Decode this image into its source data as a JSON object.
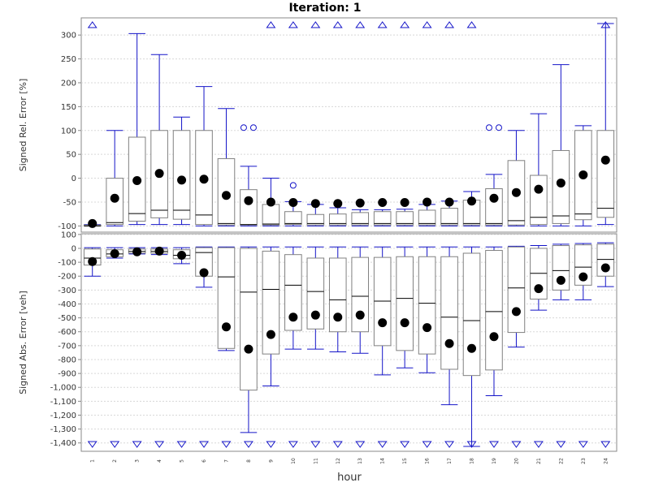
{
  "title": "Iteration: 1",
  "xlabel": "hour",
  "colors": {
    "whisker": "#1414c8",
    "box": "#808080",
    "median": "#000000",
    "mean": "#000000",
    "grid": "#d8d8d8"
  },
  "chart_data": [
    {
      "type": "boxplot",
      "ylabel": "Signed Rel. Error [%]",
      "ylim": [
        -113,
        336
      ],
      "yticks": [
        -100,
        -50,
        0,
        50,
        100,
        150,
        200,
        250,
        300
      ],
      "ytick_labels": [
        "-100",
        "-50",
        "0",
        "50",
        "100",
        "150",
        "200",
        "250",
        "300"
      ],
      "grid": true,
      "categories": [
        "1",
        "2",
        "3",
        "4",
        "5",
        "6",
        "7",
        "8",
        "9",
        "10",
        "11",
        "12",
        "13",
        "14",
        "15",
        "16",
        "17",
        "18",
        "19",
        "20",
        "21",
        "22",
        "23",
        "24"
      ],
      "boxes": [
        {
          "whislo": -100,
          "q1": -100,
          "med": -100,
          "q3": -98,
          "whishi": -97,
          "mean": -95
        },
        {
          "whislo": -100,
          "q1": -97,
          "med": -93,
          "q3": 0,
          "whishi": 100,
          "mean": -42
        },
        {
          "whislo": -97,
          "q1": -90,
          "med": -74,
          "q3": 86,
          "whishi": 303,
          "mean": -5
        },
        {
          "whislo": -97,
          "q1": -83,
          "med": -67,
          "q3": 100,
          "whishi": 259,
          "mean": 10
        },
        {
          "whislo": -97,
          "q1": -86,
          "med": -67,
          "q3": 100,
          "whishi": 128,
          "mean": -4
        },
        {
          "whislo": -100,
          "q1": -97,
          "med": -77,
          "q3": 100,
          "whishi": 192,
          "mean": -2
        },
        {
          "whislo": -100,
          "q1": -98,
          "med": -95,
          "q3": 41,
          "whishi": 146,
          "mean": -36
        },
        {
          "whislo": -100,
          "q1": -98,
          "med": -97,
          "q3": -24,
          "whishi": 25,
          "mean": -47
        },
        {
          "whislo": -100,
          "q1": -98,
          "med": -96,
          "q3": -55,
          "whishi": 0,
          "mean": -50
        },
        {
          "whislo": -100,
          "q1": -97,
          "med": -95,
          "q3": -70,
          "whishi": -49,
          "mean": -51
        },
        {
          "whislo": -100,
          "q1": -98,
          "med": -95,
          "q3": -76,
          "whishi": -55,
          "mean": -53
        },
        {
          "whislo": -100,
          "q1": -98,
          "med": -95,
          "q3": -75,
          "whishi": -62,
          "mean": -53
        },
        {
          "whislo": -100,
          "q1": -98,
          "med": -95,
          "q3": -72,
          "whishi": -66,
          "mean": -52
        },
        {
          "whislo": -100,
          "q1": -98,
          "med": -95,
          "q3": -70,
          "whishi": -66,
          "mean": -51
        },
        {
          "whislo": -100,
          "q1": -98,
          "med": -95,
          "q3": -70,
          "whishi": -65,
          "mean": -51
        },
        {
          "whislo": -100,
          "q1": -98,
          "med": -95,
          "q3": -67,
          "whishi": -55,
          "mean": -50
        },
        {
          "whislo": -100,
          "q1": -98,
          "med": -95,
          "q3": -63,
          "whishi": -48,
          "mean": -50
        },
        {
          "whislo": -100,
          "q1": -98,
          "med": -95,
          "q3": -46,
          "whishi": -28,
          "mean": -48
        },
        {
          "whislo": -100,
          "q1": -98,
          "med": -95,
          "q3": -22,
          "whishi": 8,
          "mean": -42
        },
        {
          "whislo": -100,
          "q1": -98,
          "med": -89,
          "q3": 37,
          "whishi": 100,
          "mean": -30
        },
        {
          "whislo": -100,
          "q1": -97,
          "med": -82,
          "q3": 6,
          "whishi": 135,
          "mean": -23
        },
        {
          "whislo": -100,
          "q1": -95,
          "med": -79,
          "q3": 58,
          "whishi": 238,
          "mean": -10
        },
        {
          "whislo": -100,
          "q1": -87,
          "med": -75,
          "q3": 100,
          "whishi": 110,
          "mean": 7
        },
        {
          "whislo": -97,
          "q1": -82,
          "med": -63,
          "q3": 100,
          "whishi": 324,
          "mean": 38
        }
      ],
      "outliers": [
        {
          "category": "8",
          "value": 106
        },
        {
          "category": "8",
          "value": 106
        },
        {
          "category": "10",
          "value": -15
        },
        {
          "category": "19",
          "value": 106
        },
        {
          "category": "19",
          "value": 106
        }
      ],
      "far_out_markers": [
        {
          "category": "1",
          "direction": "up"
        },
        {
          "category": "9",
          "direction": "up"
        },
        {
          "category": "10",
          "direction": "up"
        },
        {
          "category": "11",
          "direction": "up"
        },
        {
          "category": "12",
          "direction": "up"
        },
        {
          "category": "13",
          "direction": "up"
        },
        {
          "category": "14",
          "direction": "up"
        },
        {
          "category": "15",
          "direction": "up"
        },
        {
          "category": "16",
          "direction": "up"
        },
        {
          "category": "17",
          "direction": "up"
        },
        {
          "category": "18",
          "direction": "up"
        },
        {
          "category": "24",
          "direction": "up"
        }
      ]
    },
    {
      "type": "boxplot",
      "ylabel": "Signed Abs. Error [veh]",
      "ylim": [
        -1460,
        105
      ],
      "yticks": [
        -1400,
        -1300,
        -1200,
        -1100,
        -1000,
        -900,
        -800,
        -700,
        -600,
        -500,
        -400,
        -300,
        -200,
        -100,
        0,
        100
      ],
      "ytick_labels": [
        "-1,400",
        "-1,300",
        "-1,200",
        "-1,100",
        "-1,000",
        "-900",
        "-800",
        "-700",
        "-600",
        "-500",
        "-400",
        "-300",
        "-200",
        "-100",
        "0",
        "100"
      ],
      "grid": true,
      "categories": [
        "1",
        "2",
        "3",
        "4",
        "5",
        "6",
        "7",
        "8",
        "9",
        "10",
        "11",
        "12",
        "13",
        "14",
        "15",
        "16",
        "17",
        "18",
        "19",
        "20",
        "21",
        "22",
        "23",
        "24"
      ],
      "boxes": [
        {
          "whislo": -200,
          "q1": -120,
          "med": -70,
          "q3": -5,
          "whishi": 5,
          "mean": -95
        },
        {
          "whislo": -70,
          "q1": -60,
          "med": -40,
          "q3": -10,
          "whishi": 5,
          "mean": -38
        },
        {
          "whislo": -40,
          "q1": -35,
          "med": -22,
          "q3": -5,
          "whishi": 5,
          "mean": -25
        },
        {
          "whislo": -45,
          "q1": -35,
          "med": -22,
          "q3": -5,
          "whishi": 5,
          "mean": -20
        },
        {
          "whislo": -110,
          "q1": -75,
          "med": -50,
          "q3": -10,
          "whishi": 5,
          "mean": -50
        },
        {
          "whislo": -280,
          "q1": -200,
          "med": -30,
          "q3": 5,
          "whishi": 10,
          "mean": -175
        },
        {
          "whislo": -735,
          "q1": -720,
          "med": -205,
          "q3": 5,
          "whishi": 10,
          "mean": -565
        },
        {
          "whislo": -1325,
          "q1": -1020,
          "med": -315,
          "q3": 0,
          "whishi": 10,
          "mean": -725
        },
        {
          "whislo": -990,
          "q1": -760,
          "med": -295,
          "q3": -20,
          "whishi": 10,
          "mean": -620
        },
        {
          "whislo": -725,
          "q1": -590,
          "med": -265,
          "q3": -45,
          "whishi": 10,
          "mean": -495
        },
        {
          "whislo": -725,
          "q1": -580,
          "med": -310,
          "q3": -70,
          "whishi": 10,
          "mean": -480
        },
        {
          "whislo": -745,
          "q1": -600,
          "med": -370,
          "q3": -70,
          "whishi": 10,
          "mean": -495
        },
        {
          "whislo": -755,
          "q1": -600,
          "med": -345,
          "q3": -65,
          "whishi": 10,
          "mean": -480
        },
        {
          "whislo": -910,
          "q1": -700,
          "med": -380,
          "q3": -65,
          "whishi": 10,
          "mean": -535
        },
        {
          "whislo": -860,
          "q1": -735,
          "med": -360,
          "q3": -60,
          "whishi": 10,
          "mean": -535
        },
        {
          "whislo": -895,
          "q1": -760,
          "med": -395,
          "q3": -60,
          "whishi": 10,
          "mean": -570
        },
        {
          "whislo": -1125,
          "q1": -870,
          "med": -495,
          "q3": -60,
          "whishi": 10,
          "mean": -685
        },
        {
          "whislo": -1425,
          "q1": -915,
          "med": -520,
          "q3": -35,
          "whishi": 10,
          "mean": -720
        },
        {
          "whislo": -1060,
          "q1": -875,
          "med": -455,
          "q3": -15,
          "whishi": 10,
          "mean": -635
        },
        {
          "whislo": -710,
          "q1": -605,
          "med": -285,
          "q3": 10,
          "whishi": 15,
          "mean": -455
        },
        {
          "whislo": -445,
          "q1": -365,
          "med": -180,
          "q3": 0,
          "whishi": 20,
          "mean": -290
        },
        {
          "whislo": -370,
          "q1": -300,
          "med": -160,
          "q3": 20,
          "whishi": 30,
          "mean": -230
        },
        {
          "whislo": -370,
          "q1": -265,
          "med": -135,
          "q3": 25,
          "whishi": 35,
          "mean": -205
        },
        {
          "whislo": -275,
          "q1": -200,
          "med": -80,
          "q3": 30,
          "whishi": 40,
          "mean": -140
        }
      ],
      "far_out_markers": [
        {
          "category": "1",
          "direction": "down"
        },
        {
          "category": "2",
          "direction": "down"
        },
        {
          "category": "3",
          "direction": "down"
        },
        {
          "category": "4",
          "direction": "down"
        },
        {
          "category": "5",
          "direction": "down"
        },
        {
          "category": "6",
          "direction": "down"
        },
        {
          "category": "7",
          "direction": "down"
        },
        {
          "category": "8",
          "direction": "down"
        },
        {
          "category": "9",
          "direction": "down"
        },
        {
          "category": "10",
          "direction": "down"
        },
        {
          "category": "11",
          "direction": "down"
        },
        {
          "category": "12",
          "direction": "down"
        },
        {
          "category": "13",
          "direction": "down"
        },
        {
          "category": "14",
          "direction": "down"
        },
        {
          "category": "15",
          "direction": "down"
        },
        {
          "category": "16",
          "direction": "down"
        },
        {
          "category": "17",
          "direction": "down"
        },
        {
          "category": "18",
          "direction": "down"
        },
        {
          "category": "19",
          "direction": "down"
        },
        {
          "category": "20",
          "direction": "down"
        },
        {
          "category": "21",
          "direction": "down"
        },
        {
          "category": "22",
          "direction": "down"
        },
        {
          "category": "23",
          "direction": "down"
        },
        {
          "category": "24",
          "direction": "down"
        }
      ]
    }
  ]
}
